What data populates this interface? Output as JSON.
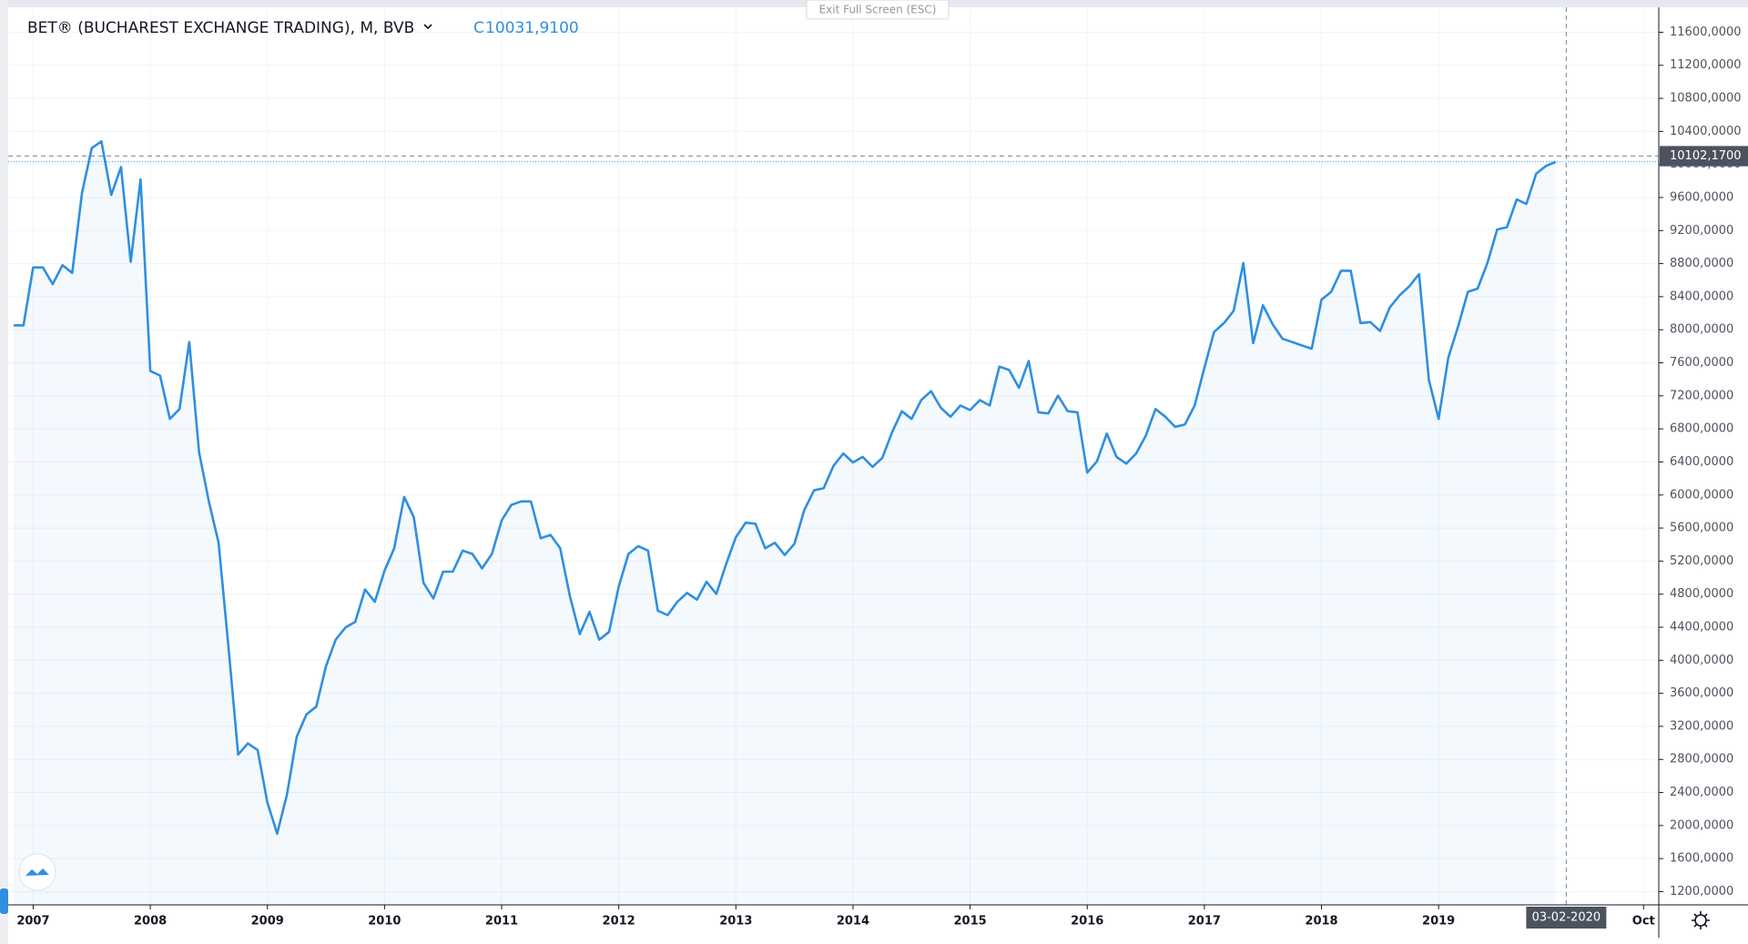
{
  "chart_data": {
    "type": "line",
    "title": "BET® (BUCHAREST EXCHANGE TRADING), M, BVB",
    "close_prefix": "C",
    "close_value": "10031,9100",
    "exit_button": "Exit Full Screen (ESC)",
    "x": [
      2006.833,
      2006.917,
      2007,
      2007.083,
      2007.167,
      2007.25,
      2007.333,
      2007.417,
      2007.5,
      2007.583,
      2007.667,
      2007.75,
      2007.833,
      2007.917,
      2008,
      2008.083,
      2008.167,
      2008.25,
      2008.333,
      2008.417,
      2008.5,
      2008.583,
      2008.667,
      2008.75,
      2008.833,
      2008.917,
      2009,
      2009.083,
      2009.167,
      2009.25,
      2009.333,
      2009.417,
      2009.5,
      2009.583,
      2009.667,
      2009.75,
      2009.833,
      2009.917,
      2010,
      2010.083,
      2010.167,
      2010.25,
      2010.333,
      2010.417,
      2010.5,
      2010.583,
      2010.667,
      2010.75,
      2010.833,
      2010.917,
      2011,
      2011.083,
      2011.167,
      2011.25,
      2011.333,
      2011.417,
      2011.5,
      2011.583,
      2011.667,
      2011.75,
      2011.833,
      2011.917,
      2012,
      2012.083,
      2012.167,
      2012.25,
      2012.333,
      2012.417,
      2012.5,
      2012.583,
      2012.667,
      2012.75,
      2012.833,
      2012.917,
      2013,
      2013.083,
      2013.167,
      2013.25,
      2013.333,
      2013.417,
      2013.5,
      2013.583,
      2013.667,
      2013.75,
      2013.833,
      2013.917,
      2014,
      2014.083,
      2014.167,
      2014.25,
      2014.333,
      2014.417,
      2014.5,
      2014.583,
      2014.667,
      2014.75,
      2014.833,
      2014.917,
      2015,
      2015.083,
      2015.167,
      2015.25,
      2015.333,
      2015.417,
      2015.5,
      2015.583,
      2015.667,
      2015.75,
      2015.833,
      2015.917,
      2016,
      2016.083,
      2016.167,
      2016.25,
      2016.333,
      2016.417,
      2016.5,
      2016.583,
      2016.667,
      2016.75,
      2016.833,
      2016.917,
      2017,
      2017.083,
      2017.167,
      2017.25,
      2017.333,
      2017.417,
      2017.5,
      2017.583,
      2017.667,
      2017.75,
      2017.833,
      2017.917,
      2018,
      2018.083,
      2018.167,
      2018.25,
      2018.333,
      2018.417,
      2018.5,
      2018.583,
      2018.667,
      2018.75,
      2018.833,
      2018.917,
      2019,
      2019.083,
      2019.167,
      2019.25,
      2019.333,
      2019.417,
      2019.5,
      2019.583,
      2019.667,
      2019.75,
      2019.833,
      2019.917,
      2020
    ],
    "series": [
      {
        "color": "#2f8fe0",
        "values": [
          8053,
          8053,
          8754,
          8754,
          8552,
          8781,
          8687,
          9658,
          10198,
          10279,
          9631,
          9969,
          8822,
          9820,
          7500,
          7446,
          6920,
          7041,
          7851,
          6515,
          5922,
          5422,
          4168,
          2859,
          2994,
          2913,
          2279,
          1901,
          2374,
          3075,
          3345,
          3439,
          3925,
          4249,
          4397,
          4465,
          4856,
          4707,
          5085,
          5355,
          5975,
          5733,
          4937,
          4748,
          5072,
          5072,
          5328,
          5287,
          5112,
          5287,
          5692,
          5881,
          5922,
          5922,
          5476,
          5517,
          5355,
          4775,
          4316,
          4586,
          4249,
          4343,
          4896,
          5287,
          5382,
          5328,
          4600,
          4546,
          4707,
          4815,
          4734,
          4950,
          4802,
          5166,
          5490,
          5665,
          5652,
          5355,
          5422,
          5274,
          5409,
          5814,
          6056,
          6083,
          6353,
          6502,
          6394,
          6461,
          6340,
          6448,
          6758,
          7014,
          6920,
          7149,
          7257,
          7055,
          6947,
          7082,
          7028,
          7149,
          7082,
          7554,
          7513,
          7297,
          7621,
          7001,
          6987,
          7203,
          7014,
          7001,
          6272,
          6407,
          6744,
          6461,
          6380,
          6502,
          6717,
          7041,
          6947,
          6825,
          6852,
          7082,
          7540,
          7972,
          8080,
          8228,
          8808,
          7837,
          8296,
          8066,
          7891,
          7851,
          7810,
          7770,
          8364,
          8458,
          8714,
          8714,
          8080,
          8093,
          7985,
          8269,
          8417,
          8525,
          8673,
          7392,
          6920,
          7662,
          8040,
          8458,
          8498,
          8808,
          9213,
          9240,
          9577,
          9523,
          9887,
          9982,
          10031.91
        ]
      }
    ],
    "xlim": [
      2006.81,
      2020.88
    ],
    "ylim": [
      1040,
      11880
    ],
    "xticks": [
      2007,
      2008,
      2009,
      2010,
      2011,
      2012,
      2013,
      2014,
      2015,
      2016,
      2017,
      2018,
      2019,
      {
        "value": 2020.75,
        "label": "Oct"
      }
    ],
    "yticks": [
      {
        "value": 1200,
        "label": "1200,0000"
      },
      {
        "value": 1600,
        "label": "1600,0000"
      },
      {
        "value": 2000,
        "label": "2000,0000"
      },
      {
        "value": 2400,
        "label": "2400,0000"
      },
      {
        "value": 2800,
        "label": "2800,0000"
      },
      {
        "value": 3200,
        "label": "3200,0000"
      },
      {
        "value": 3600,
        "label": "3600,0000"
      },
      {
        "value": 4000,
        "label": "4000,0000"
      },
      {
        "value": 4400,
        "label": "4400,0000"
      },
      {
        "value": 4800,
        "label": "4800,0000"
      },
      {
        "value": 5200,
        "label": "5200,0000"
      },
      {
        "value": 5600,
        "label": "5600,0000"
      },
      {
        "value": 6000,
        "label": "6000,0000"
      },
      {
        "value": 6400,
        "label": "6400,0000"
      },
      {
        "value": 6800,
        "label": "6800,0000"
      },
      {
        "value": 7200,
        "label": "7200,0000"
      },
      {
        "value": 7600,
        "label": "7600,0000"
      },
      {
        "value": 8000,
        "label": "8000,0000"
      },
      {
        "value": 8400,
        "label": "8400,0000"
      },
      {
        "value": 8800,
        "label": "8800,0000"
      },
      {
        "value": 9200,
        "label": "9200,0000"
      },
      {
        "value": 9600,
        "label": "9600,0000"
      },
      {
        "value": 10000,
        "label": "10000,0000"
      },
      {
        "value": 10400,
        "label": "10400,0000"
      },
      {
        "value": 10800,
        "label": "10800,0000"
      },
      {
        "value": 11200,
        "label": "11200,0000"
      },
      {
        "value": 11600,
        "label": "11600,0000"
      }
    ],
    "grid": true,
    "crosshair": {
      "x": {
        "value": 2020.09,
        "label": "03-02-2020"
      },
      "y": {
        "value": 10102.17,
        "label": "10102,1700"
      }
    }
  }
}
